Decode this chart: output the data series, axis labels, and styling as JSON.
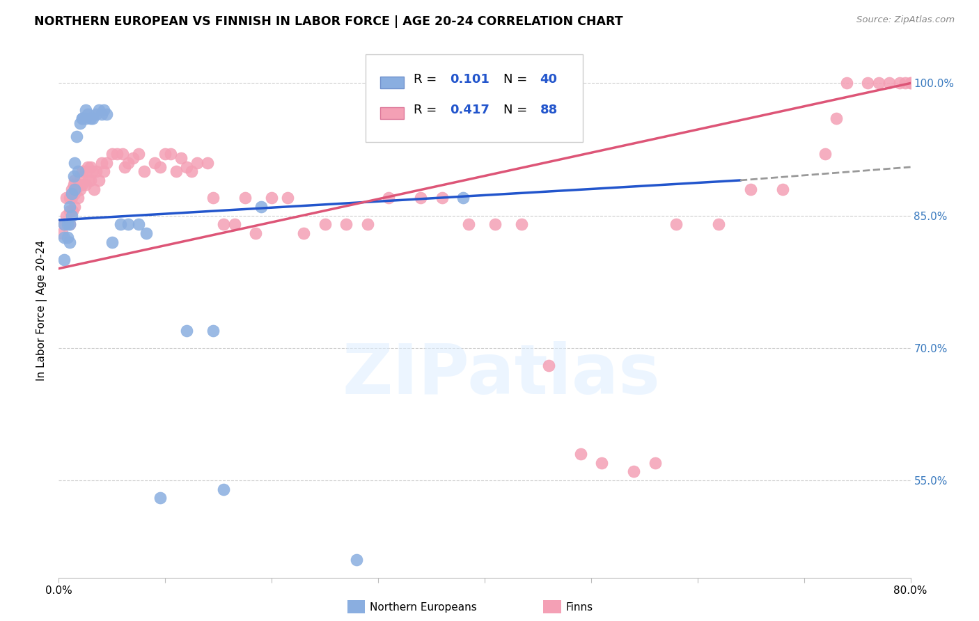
{
  "title": "NORTHERN EUROPEAN VS FINNISH IN LABOR FORCE | AGE 20-24 CORRELATION CHART",
  "source": "Source: ZipAtlas.com",
  "ylabel": "In Labor Force | Age 20-24",
  "xlim": [
    0.0,
    0.8
  ],
  "ylim": [
    0.44,
    1.045
  ],
  "x_ticks": [
    0.0,
    0.1,
    0.2,
    0.3,
    0.4,
    0.5,
    0.6,
    0.7,
    0.8
  ],
  "x_tick_labels": [
    "0.0%",
    "",
    "",
    "",
    "",
    "",
    "",
    "",
    "80.0%"
  ],
  "y_ticks": [
    0.55,
    0.7,
    0.85,
    1.0
  ],
  "y_tick_labels": [
    "55.0%",
    "70.0%",
    "85.0%",
    "100.0%"
  ],
  "blue_color": "#8aaee0",
  "pink_color": "#f4a0b5",
  "line_blue": "#2255cc",
  "line_pink": "#dd5577",
  "line_blue_dash": "#999999",
  "blue_label_R": "R = 0.101",
  "blue_label_N": "N = 40",
  "pink_label_R": "R = 0.417",
  "pink_label_N": "N = 88",
  "ne_label": "Northern Europeans",
  "fi_label": "Finns",
  "watermark_color": "#ddeeff",
  "ne_x": [
    0.005,
    0.005,
    0.005,
    0.008,
    0.008,
    0.01,
    0.01,
    0.01,
    0.012,
    0.012,
    0.014,
    0.015,
    0.015,
    0.017,
    0.018,
    0.02,
    0.022,
    0.022,
    0.025,
    0.025,
    0.027,
    0.03,
    0.032,
    0.035,
    0.038,
    0.04,
    0.042,
    0.045,
    0.05,
    0.058,
    0.065,
    0.075,
    0.082,
    0.095,
    0.12,
    0.145,
    0.155,
    0.19,
    0.28,
    0.38
  ],
  "ne_y": [
    0.84,
    0.825,
    0.8,
    0.84,
    0.825,
    0.86,
    0.84,
    0.82,
    0.875,
    0.85,
    0.895,
    0.91,
    0.88,
    0.94,
    0.9,
    0.955,
    0.96,
    0.96,
    0.97,
    0.96,
    0.965,
    0.96,
    0.96,
    0.965,
    0.97,
    0.965,
    0.97,
    0.965,
    0.82,
    0.84,
    0.84,
    0.84,
    0.83,
    0.53,
    0.72,
    0.72,
    0.54,
    0.86,
    0.46,
    0.87
  ],
  "fi_x": [
    0.003,
    0.005,
    0.007,
    0.007,
    0.01,
    0.01,
    0.01,
    0.012,
    0.012,
    0.013,
    0.014,
    0.015,
    0.015,
    0.015,
    0.016,
    0.018,
    0.018,
    0.02,
    0.02,
    0.022,
    0.022,
    0.025,
    0.025,
    0.027,
    0.028,
    0.03,
    0.03,
    0.032,
    0.033,
    0.035,
    0.038,
    0.04,
    0.042,
    0.045,
    0.05,
    0.055,
    0.06,
    0.062,
    0.065,
    0.07,
    0.075,
    0.08,
    0.09,
    0.095,
    0.1,
    0.105,
    0.11,
    0.115,
    0.12,
    0.125,
    0.13,
    0.14,
    0.145,
    0.155,
    0.165,
    0.175,
    0.185,
    0.2,
    0.215,
    0.23,
    0.25,
    0.27,
    0.29,
    0.31,
    0.34,
    0.36,
    0.385,
    0.41,
    0.435,
    0.46,
    0.49,
    0.51,
    0.54,
    0.56,
    0.58,
    0.62,
    0.65,
    0.68,
    0.72,
    0.73,
    0.74,
    0.76,
    0.77,
    0.78,
    0.79,
    0.795,
    0.8,
    0.8
  ],
  "fi_y": [
    0.83,
    0.84,
    0.87,
    0.85,
    0.87,
    0.855,
    0.84,
    0.88,
    0.87,
    0.855,
    0.885,
    0.89,
    0.875,
    0.86,
    0.88,
    0.885,
    0.87,
    0.895,
    0.88,
    0.9,
    0.885,
    0.9,
    0.885,
    0.905,
    0.89,
    0.905,
    0.89,
    0.9,
    0.88,
    0.9,
    0.89,
    0.91,
    0.9,
    0.91,
    0.92,
    0.92,
    0.92,
    0.905,
    0.91,
    0.915,
    0.92,
    0.9,
    0.91,
    0.905,
    0.92,
    0.92,
    0.9,
    0.915,
    0.905,
    0.9,
    0.91,
    0.91,
    0.87,
    0.84,
    0.84,
    0.87,
    0.83,
    0.87,
    0.87,
    0.83,
    0.84,
    0.84,
    0.84,
    0.87,
    0.87,
    0.87,
    0.84,
    0.84,
    0.84,
    0.68,
    0.58,
    0.57,
    0.56,
    0.57,
    0.84,
    0.84,
    0.88,
    0.88,
    0.92,
    0.96,
    1.0,
    1.0,
    1.0,
    1.0,
    1.0,
    1.0,
    1.0,
    1.0
  ]
}
